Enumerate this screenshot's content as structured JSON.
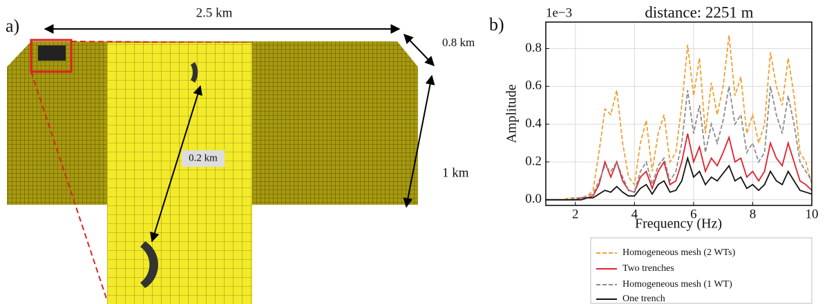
{
  "panel_a": {
    "label": "a)",
    "length": "2.5 km",
    "depth": "0.8 km",
    "height": "1 km",
    "spacing": "0.2 km"
  },
  "chart_data": {
    "type": "line",
    "panel_label": "b)",
    "title": "distance: 2251 m",
    "offset_label": "1e−3",
    "xlabel": "Frequency (Hz)",
    "ylabel": "Amplitude",
    "x": [
      1.0,
      1.2,
      1.4,
      1.6,
      1.8,
      2.0,
      2.2,
      2.4,
      2.6,
      2.8,
      3.0,
      3.2,
      3.4,
      3.6,
      3.8,
      4.0,
      4.2,
      4.4,
      4.6,
      4.8,
      5.0,
      5.2,
      5.4,
      5.6,
      5.8,
      6.0,
      6.2,
      6.4,
      6.6,
      6.8,
      7.0,
      7.2,
      7.4,
      7.6,
      7.8,
      8.0,
      8.2,
      8.4,
      8.6,
      8.8,
      9.0,
      9.2,
      9.4,
      9.6,
      9.8,
      10.0
    ],
    "series": [
      {
        "name": "Homogeneous mesh (2 WTs)",
        "color": "#f0a030",
        "linestyle": "dashed",
        "values": [
          0,
          0,
          0,
          0,
          0.01,
          0.01,
          0.01,
          0.02,
          0.05,
          0.25,
          0.48,
          0.45,
          0.58,
          0.3,
          0.12,
          0.08,
          0.3,
          0.42,
          0.15,
          0.35,
          0.45,
          0.2,
          0.25,
          0.5,
          0.82,
          0.55,
          0.75,
          0.35,
          0.62,
          0.45,
          0.6,
          0.87,
          0.55,
          0.65,
          0.35,
          0.45,
          0.3,
          0.4,
          0.78,
          0.6,
          0.5,
          0.75,
          0.55,
          0.25,
          0.2,
          0.08
        ]
      },
      {
        "name": "Two trenches",
        "color": "#e0202a",
        "linestyle": "solid",
        "values": [
          0,
          0,
          0,
          0,
          0,
          0,
          0.01,
          0.01,
          0.02,
          0.08,
          0.2,
          0.12,
          0.2,
          0.1,
          0.05,
          0.04,
          0.12,
          0.15,
          0.06,
          0.15,
          0.2,
          0.08,
          0.1,
          0.2,
          0.35,
          0.2,
          0.28,
          0.15,
          0.22,
          0.18,
          0.25,
          0.33,
          0.2,
          0.22,
          0.12,
          0.15,
          0.1,
          0.15,
          0.3,
          0.22,
          0.18,
          0.3,
          0.2,
          0.1,
          0.08,
          0.05
        ]
      },
      {
        "name": "Homogeneous mesh (1 WT)",
        "color": "#8a8a8a",
        "linestyle": "dashed",
        "values": [
          0,
          0,
          0,
          0,
          0,
          0.01,
          0.01,
          0.02,
          0.03,
          0.1,
          0.18,
          0.15,
          0.2,
          0.12,
          0.05,
          0.04,
          0.15,
          0.2,
          0.08,
          0.18,
          0.22,
          0.1,
          0.15,
          0.3,
          0.58,
          0.35,
          0.5,
          0.25,
          0.4,
          0.3,
          0.42,
          0.6,
          0.4,
          0.45,
          0.25,
          0.3,
          0.2,
          0.25,
          0.6,
          0.45,
          0.35,
          0.55,
          0.4,
          0.2,
          0.15,
          0.1
        ]
      },
      {
        "name": "One trench",
        "color": "#111111",
        "linestyle": "solid",
        "values": [
          0,
          0,
          0,
          0,
          0,
          0,
          0,
          0.01,
          0.01,
          0.03,
          0.05,
          0.04,
          0.07,
          0.04,
          0.02,
          0.02,
          0.06,
          0.08,
          0.03,
          0.08,
          0.1,
          0.04,
          0.05,
          0.1,
          0.22,
          0.12,
          0.15,
          0.08,
          0.12,
          0.1,
          0.14,
          0.18,
          0.1,
          0.12,
          0.06,
          0.08,
          0.05,
          0.08,
          0.15,
          0.1,
          0.08,
          0.15,
          0.1,
          0.05,
          0.04,
          0.03
        ]
      }
    ],
    "xlim": [
      1,
      10
    ],
    "xticks": [
      2,
      4,
      6,
      8,
      10
    ],
    "ylim": [
      -0.03,
      0.94
    ],
    "yticks": [
      {
        "value": 0,
        "label": "0.0"
      },
      0.2,
      0.4,
      0.6,
      0.8
    ],
    "grid": true,
    "legend": "below"
  }
}
